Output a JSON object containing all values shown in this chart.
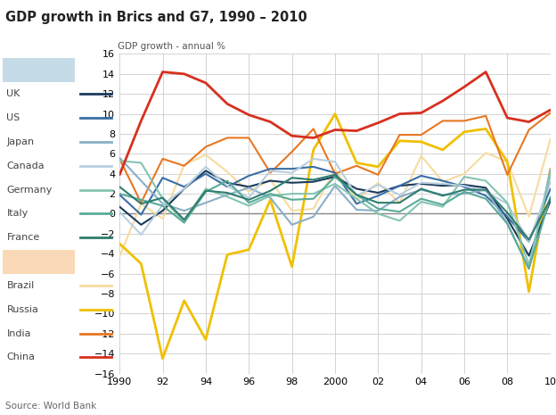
{
  "title": "GDP growth in Brics and G7, 1990 – 2010",
  "ylabel": "GDP growth - annual %",
  "source": "Source: World Bank",
  "years": [
    1990,
    1991,
    1992,
    1993,
    1994,
    1995,
    1996,
    1997,
    1998,
    1999,
    2000,
    2001,
    2002,
    2003,
    2004,
    2005,
    2006,
    2007,
    2008,
    2009,
    2010
  ],
  "ylim": [
    -16,
    16
  ],
  "yticks": [
    -16,
    -14,
    -12,
    -10,
    -8,
    -6,
    -4,
    -2,
    0,
    2,
    4,
    6,
    8,
    10,
    12,
    14,
    16
  ],
  "xticks": [
    1990,
    1992,
    1994,
    1996,
    1998,
    2000,
    2002,
    2004,
    2006,
    2008,
    2010
  ],
  "xticklabels": [
    "1990",
    "92",
    "94",
    "96",
    "98",
    "2000",
    "02",
    "04",
    "06",
    "08",
    "10"
  ],
  "series": {
    "UK": {
      "color": "#1a3a5c",
      "lw": 1.5,
      "alpha": 1.0,
      "zorder": 5,
      "data": [
        0.7,
        -1.1,
        0.3,
        2.5,
        4.3,
        3.1,
        2.7,
        3.3,
        3.1,
        3.2,
        3.7,
        2.5,
        2.1,
        2.8,
        3.0,
        2.8,
        2.9,
        2.6,
        -0.5,
        -4.2,
        1.3
      ]
    },
    "US": {
      "color": "#3a6ea5",
      "lw": 1.5,
      "alpha": 1.0,
      "zorder": 5,
      "data": [
        1.9,
        -0.1,
        3.6,
        2.7,
        4.0,
        2.7,
        3.8,
        4.5,
        4.5,
        4.7,
        4.1,
        1.0,
        1.8,
        2.8,
        3.8,
        3.3,
        2.7,
        1.8,
        -0.3,
        -2.8,
        2.5
      ]
    },
    "Japan": {
      "color": "#8aaec8",
      "lw": 1.5,
      "alpha": 1.0,
      "zorder": 5,
      "data": [
        5.6,
        3.3,
        1.0,
        0.3,
        1.1,
        1.9,
        2.6,
        1.6,
        -1.1,
        -0.3,
        2.8,
        0.4,
        0.3,
        1.7,
        2.4,
        1.9,
        2.0,
        2.4,
        -1.0,
        -5.5,
        4.4
      ]
    },
    "Canada": {
      "color": "#b8cfe0",
      "lw": 1.5,
      "alpha": 1.0,
      "zorder": 5,
      "data": [
        0.2,
        -2.1,
        0.9,
        2.5,
        4.7,
        2.8,
        1.6,
        4.3,
        4.1,
        5.5,
        5.2,
        1.8,
        2.9,
        1.9,
        3.1,
        3.0,
        2.8,
        2.2,
        1.0,
        -2.8,
        3.2
      ]
    },
    "Germany": {
      "color": "#85c4b2",
      "lw": 1.5,
      "alpha": 1.0,
      "zorder": 5,
      "data": [
        5.3,
        5.1,
        1.5,
        -0.8,
        2.5,
        1.7,
        0.8,
        1.8,
        2.0,
        2.0,
        3.0,
        1.5,
        0.0,
        -0.7,
        1.2,
        0.7,
        3.7,
        3.3,
        1.1,
        -5.1,
        3.9
      ]
    },
    "Italy": {
      "color": "#5aab99",
      "lw": 1.5,
      "alpha": 1.0,
      "zorder": 5,
      "data": [
        2.0,
        1.4,
        0.8,
        -0.9,
        2.2,
        3.3,
        1.1,
        2.0,
        1.4,
        1.5,
        3.7,
        1.9,
        0.5,
        0.2,
        1.5,
        0.9,
        2.2,
        1.5,
        -1.0,
        -5.5,
        1.7
      ]
    },
    "France": {
      "color": "#2e7d6e",
      "lw": 1.5,
      "alpha": 1.0,
      "zorder": 5,
      "data": [
        2.7,
        1.0,
        1.6,
        -0.6,
        2.3,
        2.1,
        1.4,
        2.3,
        3.6,
        3.4,
        3.9,
        1.9,
        1.1,
        1.1,
        2.5,
        1.8,
        2.4,
        2.4,
        0.1,
        -2.6,
        1.5
      ]
    },
    "Brazil": {
      "color": "#f7dba0",
      "lw": 1.5,
      "alpha": 1.0,
      "zorder": 3,
      "data": [
        -4.3,
        1.0,
        -0.5,
        4.9,
        5.9,
        4.2,
        2.2,
        3.4,
        0.3,
        0.5,
        4.4,
        1.4,
        3.1,
        1.1,
        5.8,
        3.2,
        4.0,
        6.1,
        5.2,
        -0.3,
        7.5
      ]
    },
    "Russia": {
      "color": "#f0c000",
      "lw": 2.0,
      "alpha": 1.0,
      "zorder": 4,
      "data": [
        -3.0,
        -5.0,
        -14.5,
        -8.7,
        -12.6,
        -4.1,
        -3.6,
        1.4,
        -5.3,
        6.4,
        10.0,
        5.1,
        4.7,
        7.3,
        7.2,
        6.4,
        8.2,
        8.5,
        5.2,
        -7.8,
        4.5
      ]
    },
    "India": {
      "color": "#e87722",
      "lw": 1.5,
      "alpha": 1.0,
      "zorder": 4,
      "data": [
        5.5,
        1.1,
        5.5,
        4.8,
        6.7,
        7.6,
        7.6,
        4.1,
        6.2,
        8.5,
        4.0,
        4.8,
        3.9,
        7.9,
        7.9,
        9.3,
        9.3,
        9.8,
        3.9,
        8.4,
        10.1
      ]
    },
    "China": {
      "color": "#d7301f",
      "lw": 2.0,
      "alpha": 1.0,
      "zorder": 6,
      "data": [
        3.9,
        9.3,
        14.2,
        14.0,
        13.1,
        11.0,
        9.9,
        9.2,
        7.8,
        7.6,
        8.4,
        8.3,
        9.1,
        10.0,
        10.1,
        11.3,
        12.7,
        14.2,
        9.6,
        9.2,
        10.4
      ]
    }
  },
  "g7_bg_color": "#c5dce8",
  "brics_bg_color": "#f9d9b8",
  "bg_color": "#ffffff",
  "grid_color": "#cccccc"
}
